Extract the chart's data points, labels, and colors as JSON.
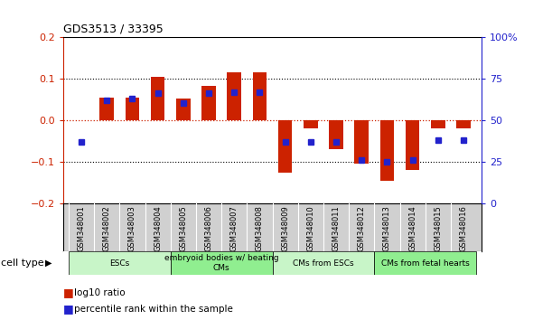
{
  "title": "GDS3513 / 33395",
  "samples": [
    "GSM348001",
    "GSM348002",
    "GSM348003",
    "GSM348004",
    "GSM348005",
    "GSM348006",
    "GSM348007",
    "GSM348008",
    "GSM348009",
    "GSM348010",
    "GSM348011",
    "GSM348012",
    "GSM348013",
    "GSM348014",
    "GSM348015",
    "GSM348016"
  ],
  "log10_ratio": [
    0.0,
    0.055,
    0.055,
    0.105,
    0.053,
    0.083,
    0.115,
    0.115,
    -0.125,
    -0.02,
    -0.07,
    -0.105,
    -0.145,
    -0.12,
    -0.02,
    -0.02
  ],
  "percentile_rank": [
    37,
    62,
    63,
    66,
    60,
    66,
    67,
    67,
    37,
    37,
    37,
    26,
    25,
    26,
    38,
    38
  ],
  "bar_color_red": "#cc2200",
  "bar_color_blue": "#2222cc",
  "ylim_left": [
    -0.2,
    0.2
  ],
  "yticks_left": [
    -0.2,
    -0.1,
    0.0,
    0.1,
    0.2
  ],
  "yticks_right": [
    0,
    25,
    50,
    75,
    100
  ],
  "bar_width": 0.55,
  "group_boundaries": [
    {
      "start": 0,
      "end": 3,
      "label": "ESCs",
      "color": "#c8f5c8"
    },
    {
      "start": 4,
      "end": 7,
      "label": "embryoid bodies w/ beating\nCMs",
      "color": "#90ee90"
    },
    {
      "start": 8,
      "end": 11,
      "label": "CMs from ESCs",
      "color": "#c8f5c8"
    },
    {
      "start": 12,
      "end": 15,
      "label": "CMs from fetal hearts",
      "color": "#90ee90"
    }
  ],
  "cell_type_label": "cell type",
  "legend_red": "log10 ratio",
  "legend_blue": "percentile rank within the sample",
  "sample_label_bg": "#d0d0d0",
  "border_color": "#555555"
}
